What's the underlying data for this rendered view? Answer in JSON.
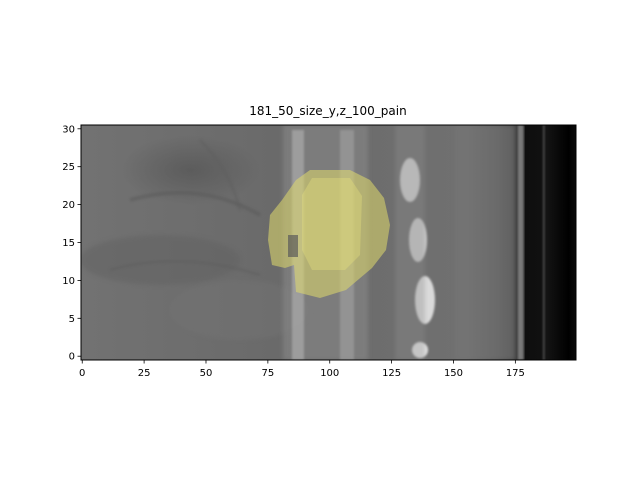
{
  "chart_data": {
    "type": "image",
    "title": "181_50_size_y,z_100_pain",
    "xlabel": "",
    "ylabel": "",
    "xlim": [
      -0.5,
      199.5
    ],
    "ylim": [
      -0.5,
      30.5
    ],
    "x_ticks": [
      0,
      25,
      50,
      75,
      100,
      125,
      150,
      175
    ],
    "y_ticks": [
      0,
      5,
      10,
      15,
      20,
      25,
      30
    ],
    "grid": false,
    "image_description": "grayscale CT slice showing spine vertebrae",
    "overlay": {
      "description": "mask overlay",
      "color": "#e6e07a",
      "x_range": [
        75,
        125
      ],
      "y_range": [
        8,
        25
      ]
    },
    "colors": {
      "frame": "#000000",
      "background": "#ffffff",
      "tissue": "#6e6e6e",
      "overlay": "#dcd66e"
    }
  }
}
